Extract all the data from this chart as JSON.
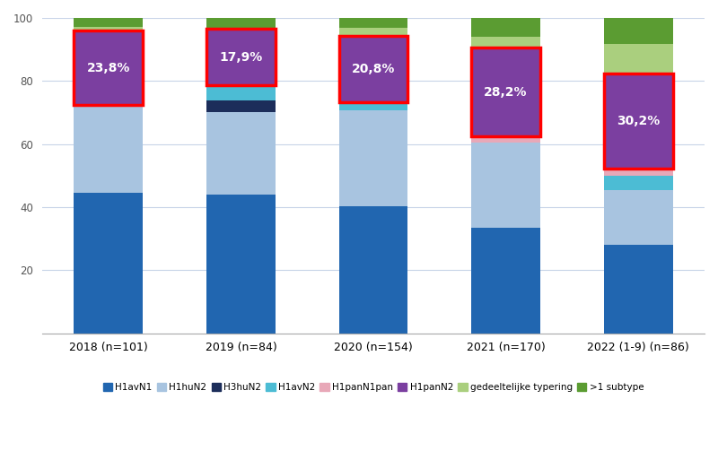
{
  "categories": [
    "2018 (n=101)",
    "2019 (n=84)",
    "2020 (n=154)",
    "2021 (n=170)",
    "2022 (1-9) (n=86)"
  ],
  "series": {
    "H1avN1": [
      44.6,
      44.0,
      40.3,
      33.5,
      27.9
    ],
    "H1huN2": [
      27.7,
      26.2,
      30.5,
      27.1,
      17.4
    ],
    "H3huN2": [
      0.0,
      3.6,
      0.0,
      0.0,
      0.0
    ],
    "H1avN2": [
      0.0,
      4.8,
      2.6,
      0.0,
      4.7
    ],
    "H1panN1pan": [
      0.0,
      0.0,
      0.0,
      1.8,
      2.3
    ],
    "H1panN2": [
      23.8,
      17.9,
      20.8,
      28.2,
      30.2
    ],
    "gedeeltelijke typering": [
      1.0,
      0.0,
      2.6,
      3.5,
      9.3
    ],
    ">1 subtype": [
      2.9,
      3.5,
      3.2,
      5.9,
      8.2
    ]
  },
  "colors": {
    "H1avN1": "#2166B0",
    "H1huN2": "#A8C4E0",
    "H3huN2": "#1C2D5A",
    "H1avN2": "#4CBCD4",
    "H1panN1pan": "#E8A8B8",
    "H1panN2": "#7B3FA0",
    "gedeeltelijke typering": "#AACF7E",
    ">1 subtype": "#5B9C32"
  },
  "pandemic_label": [
    "23,8%",
    "17,9%",
    "20,8%",
    "28,2%",
    "30,2%"
  ],
  "background_color": "#FFFFFF",
  "grid_color": "#C8D4E8",
  "ylim": [
    0,
    100
  ],
  "yticks": [
    0,
    20,
    40,
    60,
    80,
    100
  ]
}
